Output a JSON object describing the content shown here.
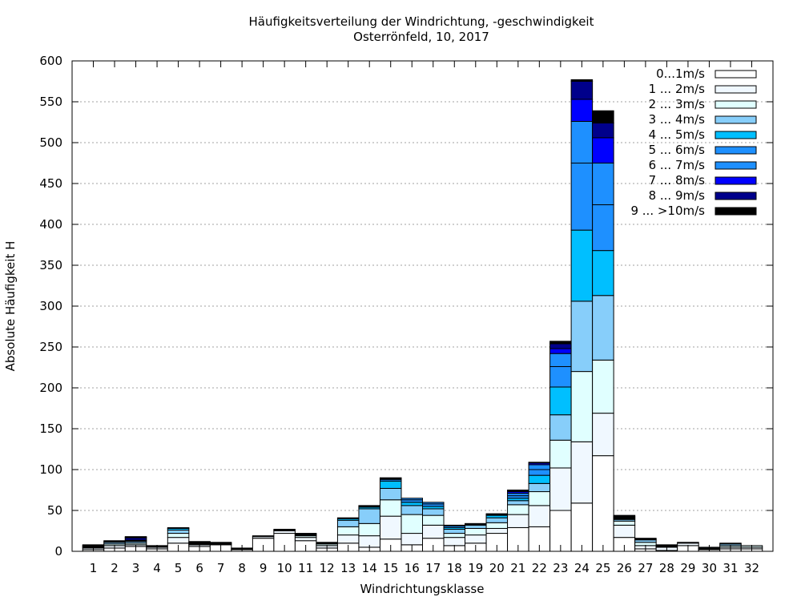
{
  "chart_data": {
    "type": "bar",
    "stacked": true,
    "title": "Häufigkeitsverteilung der Windrichtung, -geschwindigkeit",
    "subtitle": "Osterrönfeld, 10, 2017",
    "xlabel": "Windrichtungsklasse",
    "ylabel": "Absolute Häufigkeit H",
    "ylim": [
      0,
      600
    ],
    "yticks": [
      0,
      50,
      100,
      150,
      200,
      250,
      300,
      350,
      400,
      450,
      500,
      550,
      600
    ],
    "grid": true,
    "legend_position": "top-right",
    "categories": [
      "1",
      "2",
      "3",
      "4",
      "5",
      "6",
      "7",
      "8",
      "9",
      "10",
      "11",
      "12",
      "13",
      "14",
      "15",
      "16",
      "17",
      "18",
      "19",
      "20",
      "21",
      "22",
      "23",
      "24",
      "25",
      "26",
      "27",
      "28",
      "29",
      "30",
      "31",
      "32"
    ],
    "series": [
      {
        "name": "0...1m/s",
        "color": "#ffffff",
        "values": [
          2,
          4,
          6,
          3,
          10,
          6,
          8,
          2,
          16,
          22,
          13,
          4,
          10,
          5,
          15,
          8,
          16,
          7,
          10,
          22,
          29,
          30,
          50,
          59,
          117,
          17,
          3,
          1,
          7,
          2,
          3,
          3
        ]
      },
      {
        "name": "1 ... 2m/s",
        "color": "#f0f8ff",
        "values": [
          2,
          3,
          2,
          2,
          7,
          2,
          1,
          1,
          2,
          3,
          4,
          3,
          10,
          14,
          28,
          14,
          16,
          10,
          10,
          6,
          16,
          26,
          52,
          75,
          52,
          15,
          4,
          4,
          3,
          1,
          2,
          2
        ]
      },
      {
        "name": "2 ... 3m/s",
        "color": "#e0ffff",
        "values": [
          1,
          2,
          2,
          1,
          5,
          1,
          1,
          1,
          1,
          1,
          2,
          2,
          10,
          15,
          20,
          23,
          12,
          5,
          8,
          7,
          12,
          17,
          34,
          86,
          65,
          5,
          4,
          1,
          1,
          1,
          2,
          2
        ]
      },
      {
        "name": "3 ... 4m/s",
        "color": "#87cefa",
        "values": [
          1,
          2,
          2,
          1,
          4,
          1,
          1,
          0,
          0,
          1,
          1,
          1,
          8,
          18,
          14,
          11,
          8,
          5,
          4,
          6,
          5,
          10,
          31,
          86,
          79,
          2,
          3,
          1,
          0,
          1,
          2,
          0
        ]
      },
      {
        "name": "4 ... 5m/s",
        "color": "#00bfff",
        "values": [
          1,
          1,
          1,
          0,
          2,
          1,
          0,
          0,
          0,
          0,
          1,
          1,
          2,
          2,
          9,
          4,
          3,
          2,
          1,
          3,
          3,
          10,
          34,
          87,
          55,
          1,
          1,
          1,
          0,
          0,
          1,
          0
        ]
      },
      {
        "name": "5 ... 6m/s",
        "color": "#1e90ff",
        "values": [
          0,
          1,
          1,
          0,
          1,
          1,
          0,
          0,
          0,
          0,
          1,
          0,
          1,
          1,
          2,
          3,
          3,
          2,
          1,
          1,
          3,
          7,
          25,
          82,
          56,
          1,
          1,
          0,
          0,
          0,
          0,
          0
        ]
      },
      {
        "name": "6 ... 7m/s",
        "color": "#1e90ff",
        "values": [
          0,
          0,
          0,
          0,
          0,
          0,
          0,
          0,
          0,
          0,
          0,
          0,
          0,
          1,
          1,
          2,
          2,
          1,
          0,
          1,
          3,
          6,
          16,
          51,
          51,
          1,
          0,
          0,
          0,
          0,
          0,
          0
        ]
      },
      {
        "name": "7 ... 8m/s",
        "color": "#0000ff",
        "values": [
          0,
          0,
          2,
          0,
          0,
          0,
          0,
          0,
          0,
          0,
          0,
          0,
          0,
          0,
          1,
          0,
          0,
          0,
          0,
          0,
          2,
          2,
          6,
          27,
          31,
          1,
          0,
          0,
          0,
          0,
          0,
          0
        ]
      },
      {
        "name": "8 ... 9m/s",
        "color": "#00008b",
        "values": [
          0,
          0,
          1,
          0,
          0,
          0,
          0,
          0,
          0,
          0,
          0,
          0,
          0,
          0,
          0,
          0,
          0,
          0,
          0,
          0,
          1,
          1,
          6,
          22,
          18,
          1,
          0,
          0,
          0,
          0,
          0,
          0
        ]
      },
      {
        "name": "9 ... >10m/s",
        "color": "#000000",
        "values": [
          1,
          0,
          1,
          0,
          0,
          0,
          0,
          0,
          0,
          0,
          0,
          0,
          0,
          0,
          0,
          0,
          0,
          0,
          0,
          0,
          1,
          0,
          3,
          2,
          15,
          0,
          0,
          0,
          0,
          0,
          0,
          0
        ]
      }
    ]
  }
}
